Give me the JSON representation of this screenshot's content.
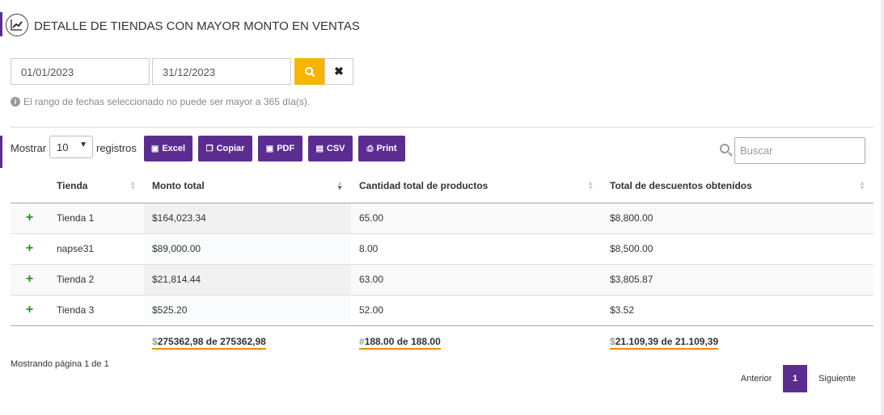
{
  "header": {
    "title": "DETALLE DE TIENDAS CON MAYOR MONTO EN VENTAS"
  },
  "filters": {
    "date_from": "01/01/2023",
    "date_to": "31/12/2023",
    "info": "El rango de fechas seleccionado no puede ser mayor a 365 día(s)."
  },
  "toolbar": {
    "show_label": "Mostrar",
    "page_size": "10",
    "records_label": "registros",
    "buttons": [
      "Excel",
      "Copiar",
      "PDF",
      "CSV",
      "Print"
    ],
    "search_placeholder": "Buscar"
  },
  "table": {
    "columns": [
      "Tienda",
      "Monto total",
      "Cantidad total de productos",
      "Total de descuentos obtenidos"
    ],
    "rows": [
      {
        "tienda": "Tienda 1",
        "monto": "$164,023.34",
        "cantidad": "65.00",
        "descuentos": "$8,800.00"
      },
      {
        "tienda": "napse31",
        "monto": "$89,000.00",
        "cantidad": "8.00",
        "descuentos": "$8,500.00"
      },
      {
        "tienda": "Tienda 2",
        "monto": "$21,814.44",
        "cantidad": "63.00",
        "descuentos": "$3,805.87"
      },
      {
        "tienda": "Tienda 3",
        "monto": "$525.20",
        "cantidad": "52.00",
        "descuentos": "$3.52"
      }
    ],
    "totals": {
      "monto_prefix": "$",
      "monto": "275362,98 de 275362,98",
      "cantidad_prefix": "#",
      "cantidad": "188.00 de 188.00",
      "descuentos_prefix": "$",
      "descuentos": "21.109,39 de 21.109,39"
    }
  },
  "pagination": {
    "info": "Mostrando página 1 de 1",
    "prev": "Anterior",
    "current": "1",
    "next": "Siguiente"
  },
  "colors": {
    "accent": "#5c2d91",
    "search_button": "#f7b400",
    "total_underline": "#f08c00",
    "expand": "#1a9b1a"
  }
}
